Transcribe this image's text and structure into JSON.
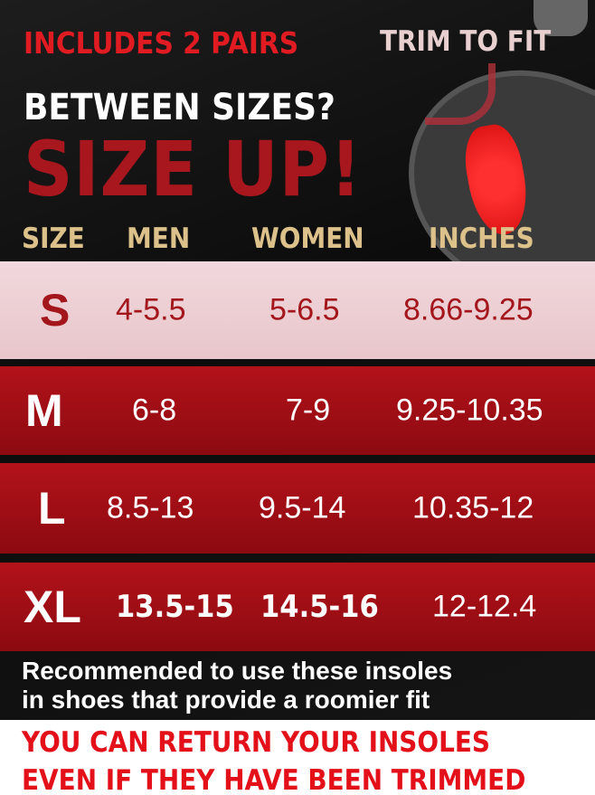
{
  "banner": {
    "includes": "INCLUDES 2 PAIRS",
    "trim": "TRIM TO FIT",
    "question": "BETWEEN SIZES?",
    "headline": "SIZE UP!"
  },
  "table": {
    "headers": [
      "SIZE",
      "MEN",
      "WOMEN",
      "INCHES"
    ],
    "rows": [
      {
        "size": "S",
        "men": "4-5.5",
        "women": "5-6.5",
        "inches": "8.66-9.25"
      },
      {
        "size": "M",
        "men": "6-8",
        "women": "7-9",
        "inches": "9.25-10.35"
      },
      {
        "size": "L",
        "men": "8.5-13",
        "women": "9.5-14",
        "inches": "10.35-12"
      },
      {
        "size": "XL",
        "men": "13.5-15",
        "women": "14.5-16",
        "inches": "12-12.4"
      }
    ]
  },
  "note": {
    "line1": "Recommended to use these insoles",
    "line2": "in shoes that provide a roomier fit"
  },
  "returns": {
    "line1": "YOU CAN RETURN YOUR INSOLES",
    "line2": "EVEN IF THEY HAVE BEEN TRIMMED"
  },
  "colors": {
    "accent_red": "#e01b22",
    "dark_red": "#a8161e",
    "gold": "#dcc18a",
    "pink_row": "#f1d8dc"
  },
  "icons": [
    "insole-image",
    "scissors-icon",
    "curved-arrow-icon"
  ]
}
